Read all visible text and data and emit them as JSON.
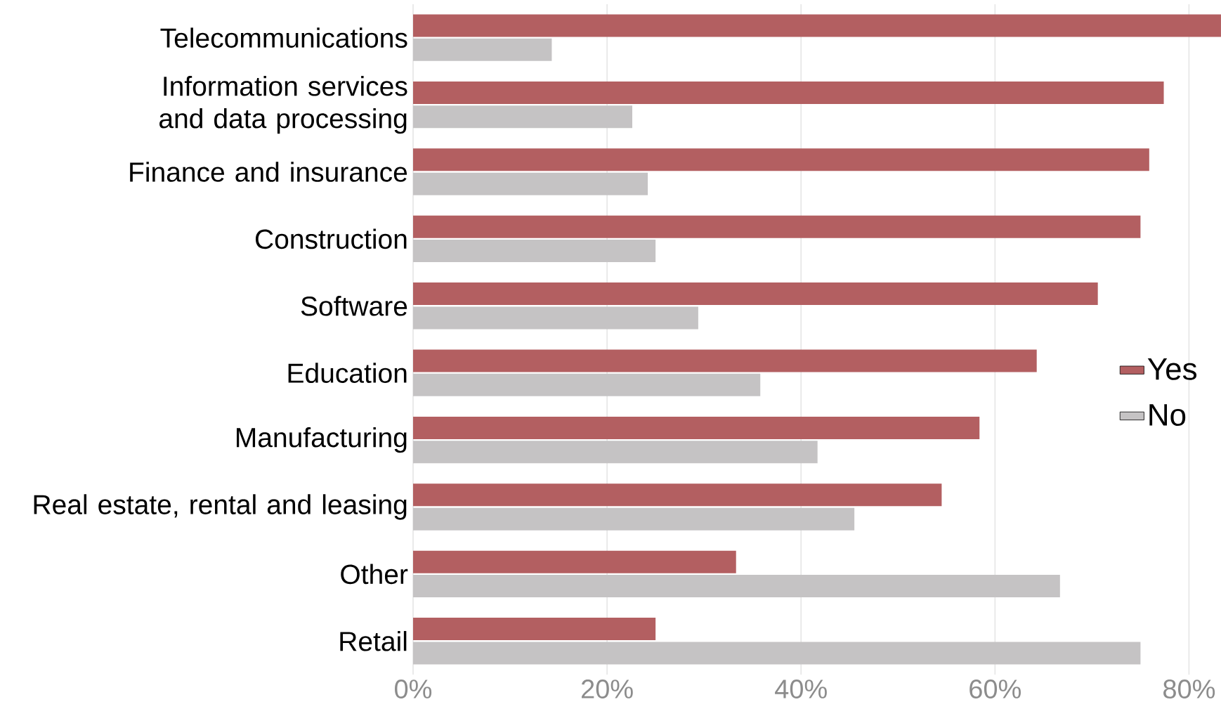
{
  "chart_data": {
    "type": "bar",
    "orientation": "horizontal",
    "categories": [
      "Telecommunications",
      "Information services and data processing",
      "Finance and insurance",
      "Construction",
      "Software",
      "Education",
      "Manufacturing",
      "Real estate, rental and leasing",
      "Other",
      "Retail"
    ],
    "series": [
      {
        "name": "Yes",
        "color": "#b35f61",
        "values": [
          83.3,
          77.4,
          75.9,
          75.0,
          70.6,
          64.3,
          58.4,
          54.5,
          33.3,
          25.0
        ]
      },
      {
        "name": "No",
        "color": "#c5c3c4",
        "values": [
          14.3,
          22.6,
          24.2,
          25.0,
          29.4,
          35.8,
          41.7,
          45.5,
          66.7,
          75.0
        ]
      }
    ],
    "xlim": [
      0,
      83.3
    ],
    "xticks": [
      {
        "value": 0,
        "label": "0%"
      },
      {
        "value": 20,
        "label": "20%"
      },
      {
        "value": 40,
        "label": "40%"
      },
      {
        "value": 60,
        "label": "60%"
      },
      {
        "value": 80,
        "label": "80%"
      }
    ],
    "grid": "x",
    "legend": "right"
  }
}
